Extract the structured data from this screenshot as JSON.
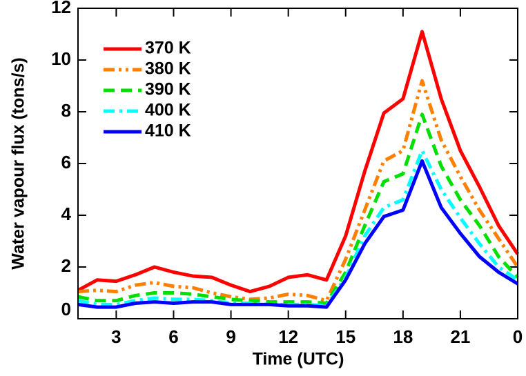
{
  "chart_data": {
    "type": "line",
    "xlabel": "Time (UTC)",
    "ylabel": "Water vapour flux (tons/s)",
    "x": [
      1,
      2,
      3,
      4,
      5,
      6,
      7,
      8,
      9,
      10,
      11,
      12,
      13,
      14,
      15,
      16,
      17,
      18,
      19,
      20,
      21,
      22,
      23,
      24
    ],
    "series": [
      {
        "name": "370 K",
        "color": "#ff0000",
        "dash": "solid",
        "values": [
          1.1,
          1.5,
          1.45,
          1.7,
          2.0,
          1.8,
          1.65,
          1.6,
          1.3,
          1.05,
          1.25,
          1.6,
          1.7,
          1.5,
          3.2,
          5.7,
          7.95,
          8.5,
          11.1,
          8.5,
          6.5,
          5.1,
          3.6,
          2.5
        ]
      },
      {
        "name": "380 K",
        "color": "#ff8000",
        "dash": "dashdotdot",
        "values": [
          1.05,
          1.1,
          1.05,
          1.3,
          1.4,
          1.25,
          1.2,
          1.0,
          0.85,
          0.75,
          0.8,
          0.95,
          0.9,
          0.7,
          2.3,
          4.2,
          6.1,
          6.5,
          9.2,
          6.9,
          5.5,
          4.2,
          3.1,
          2.0
        ]
      },
      {
        "name": "390 K",
        "color": "#00e000",
        "dash": "dashed",
        "values": [
          0.85,
          0.7,
          0.7,
          0.9,
          1.0,
          1.0,
          0.95,
          0.85,
          0.75,
          0.7,
          0.65,
          0.65,
          0.65,
          0.6,
          1.8,
          3.6,
          5.3,
          5.6,
          7.9,
          5.9,
          4.6,
          3.6,
          2.4,
          1.6
        ]
      },
      {
        "name": "400 K",
        "color": "#00ffff",
        "dash": "dashdot",
        "values": [
          0.7,
          0.55,
          0.55,
          0.7,
          0.8,
          0.75,
          0.75,
          0.7,
          0.6,
          0.6,
          0.55,
          0.55,
          0.55,
          0.5,
          1.6,
          3.2,
          4.3,
          4.6,
          6.5,
          5.0,
          3.9,
          2.9,
          2.0,
          1.5
        ]
      },
      {
        "name": "410 K",
        "color": "#0000ff",
        "dash": "solid",
        "values": [
          0.55,
          0.45,
          0.45,
          0.6,
          0.65,
          0.6,
          0.65,
          0.65,
          0.55,
          0.55,
          0.55,
          0.5,
          0.5,
          0.45,
          1.5,
          2.9,
          3.95,
          4.2,
          6.1,
          4.3,
          3.3,
          2.4,
          1.8,
          1.35
        ]
      }
    ],
    "xlim": [
      1,
      24
    ],
    "xticks": [
      3,
      6,
      9,
      12,
      15,
      18,
      21,
      {
        "value": 24,
        "label": "0"
      }
    ],
    "ylim": [
      0,
      12
    ],
    "yticks": [
      0,
      2,
      4,
      6,
      8,
      10,
      12
    ],
    "legend": "upper left",
    "grid": false
  }
}
